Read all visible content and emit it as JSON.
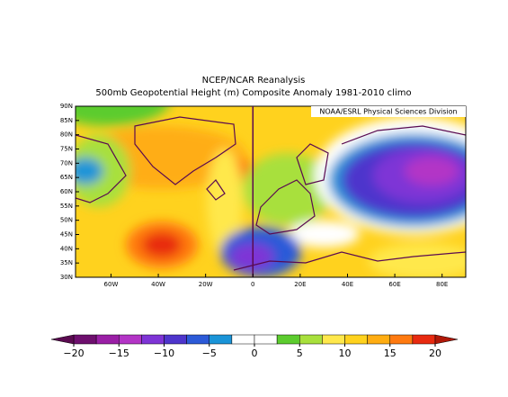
{
  "map": {
    "title": "NCEP/NCAR Reanalysis",
    "subtitle": "500mb Geopotential Height (m) Composite Anomaly 1981-2010 climo",
    "credit": "NOAA/ESRL Physical Sciences Division",
    "lon_range": [
      -75,
      90
    ],
    "lat_range": [
      30,
      90
    ],
    "lon_ticks": [
      {
        "value": -60,
        "label": "60W"
      },
      {
        "value": -40,
        "label": "40W"
      },
      {
        "value": -20,
        "label": "20W"
      },
      0,
      {
        "value": 20,
        "label": "20E"
      },
      {
        "value": 40,
        "label": "40E"
      },
      {
        "value": 60,
        "label": "60E"
      },
      {
        "value": 80,
        "label": "80E"
      }
    ],
    "lat_ticks": [
      {
        "value": 30,
        "label": "30N"
      },
      {
        "value": 35,
        "label": "35N"
      },
      {
        "value": 40,
        "label": "40N"
      },
      {
        "value": 45,
        "label": "45N"
      },
      {
        "value": 50,
        "label": "50N"
      },
      {
        "value": 55,
        "label": "55N"
      },
      {
        "value": 60,
        "label": "60N"
      },
      {
        "value": 65,
        "label": "65N"
      },
      {
        "value": 70,
        "label": "70N"
      },
      {
        "value": 75,
        "label": "75N"
      },
      {
        "value": 80,
        "label": "80N"
      },
      {
        "value": 85,
        "label": "85N"
      },
      {
        "value": 90,
        "label": "90N"
      }
    ],
    "colorbar": {
      "ticks": [
        {
          "value": -20,
          "label": "−20"
        },
        {
          "value": -15,
          "label": "−15"
        },
        {
          "value": -10,
          "label": "−10"
        },
        {
          "value": -5,
          "label": "−5"
        },
        0,
        5,
        10,
        15,
        20
      ],
      "colors": [
        "#6e0f6e",
        "#9a1fa6",
        "#b334c6",
        "#7e34d6",
        "#4e35cc",
        "#2c5ad8",
        "#1a94d8",
        "#ffffff",
        "#ffffff",
        "#5ccc2e",
        "#a8e03c",
        "#ffe84c",
        "#ffd21e",
        "#ffad12",
        "#ff7a10",
        "#e82a10"
      ],
      "under_color": "#5a0a50",
      "over_color": "#b01808"
    }
  }
}
